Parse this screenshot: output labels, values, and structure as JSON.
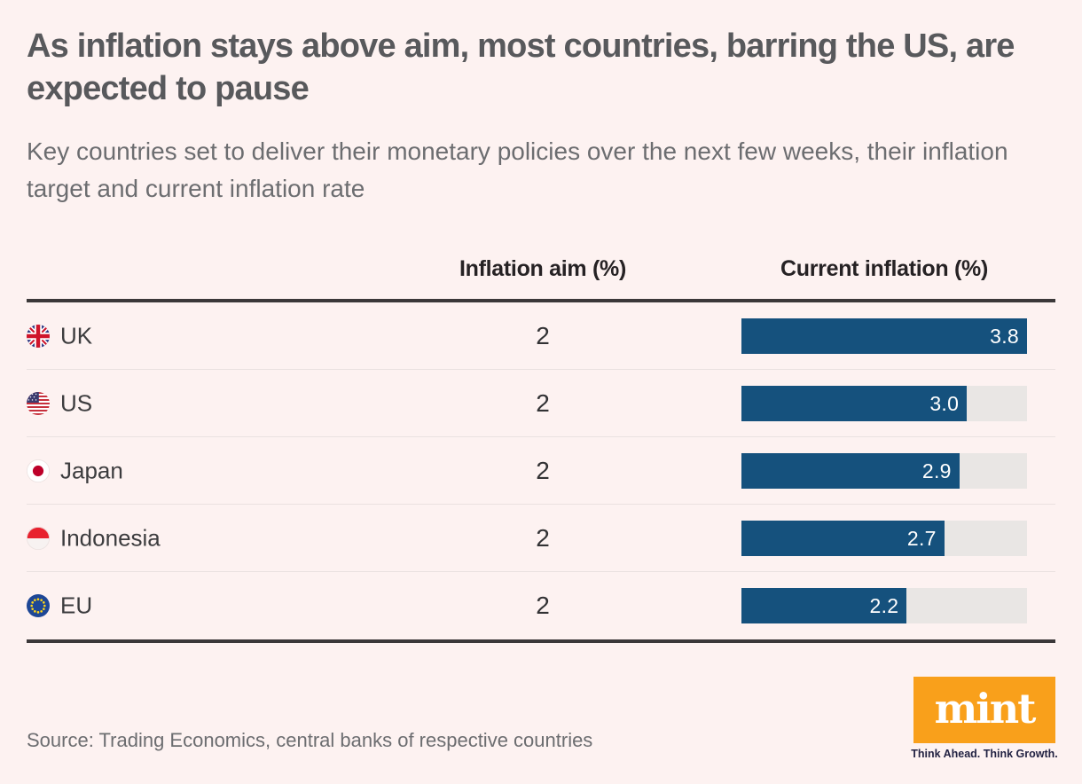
{
  "page": {
    "title": "As inflation stays above aim, most countries, barring the US, are expected to pause",
    "subtitle": "Key countries set to deliver their monetary policies over the next few weeks, their inflation target and current inflation rate",
    "source": "Source: Trading Economics, central banks of respective countries",
    "background_color": "#fdf2f1"
  },
  "table": {
    "columns": [
      "Inflation aim (%)",
      "Current inflation (%)"
    ],
    "max_value": 3.8,
    "bar_color": "#15517d",
    "track_color": "#e9e6e4",
    "rows": [
      {
        "country": "UK",
        "flag": "uk-flag-icon",
        "aim": "2",
        "current": "3.8"
      },
      {
        "country": "US",
        "flag": "us-flag-icon",
        "aim": "2",
        "current": "3.0"
      },
      {
        "country": "Japan",
        "flag": "japan-flag-icon",
        "aim": "2",
        "current": "2.9"
      },
      {
        "country": "Indonesia",
        "flag": "indonesia-flag-icon",
        "aim": "2",
        "current": "2.7"
      },
      {
        "country": "EU",
        "flag": "eu-flag-icon",
        "aim": "2",
        "current": "2.2"
      }
    ]
  },
  "logo": {
    "text": "mint",
    "tagline": "Think Ahead. Think Growth.",
    "color": "#f9a01b"
  },
  "chart_data": {
    "type": "bar",
    "orientation": "horizontal",
    "title": "As inflation stays above aim, most countries, barring the US, are expected to pause",
    "subtitle": "Key countries set to deliver their monetary policies over the next few weeks, their inflation target and current inflation rate",
    "categories": [
      "UK",
      "US",
      "Japan",
      "Indonesia",
      "EU"
    ],
    "series": [
      {
        "name": "Inflation aim (%)",
        "values": [
          2,
          2,
          2,
          2,
          2
        ]
      },
      {
        "name": "Current inflation (%)",
        "values": [
          3.8,
          3.0,
          2.9,
          2.7,
          2.2
        ]
      }
    ],
    "value_labels": [
      "3.8",
      "3.0",
      "2.9",
      "2.7",
      "2.2"
    ],
    "xlim": [
      0,
      3.8
    ],
    "grid": false,
    "legend_position": "column-headers",
    "bar_color": "#15517d",
    "track_color": "#e9e6e4",
    "source": "Source: Trading Economics, central banks of respective countries"
  }
}
